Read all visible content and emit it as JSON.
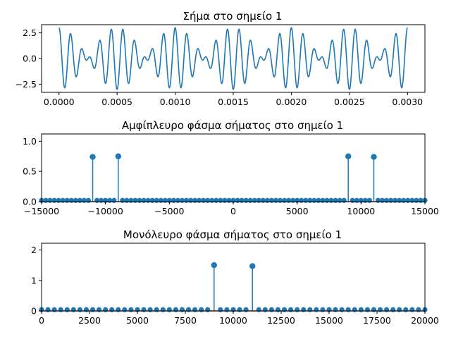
{
  "chart_data": [
    {
      "type": "line",
      "title": "Σήμα στο σημείο 1",
      "xlabel": "",
      "ylabel": "",
      "xlim": [
        -0.00015,
        0.00315
      ],
      "ylim": [
        -3.3,
        3.3
      ],
      "x_ticks": [
        0,
        0.0005,
        0.001,
        0.0015,
        0.002,
        0.0025,
        0.003
      ],
      "x_tick_labels": [
        "0.0000",
        "0.0005",
        "0.0010",
        "0.0015",
        "0.0020",
        "0.0025",
        "0.0030"
      ],
      "y_ticks": [
        -2.5,
        0,
        2.5
      ],
      "y_tick_labels": [
        "−2.5",
        "0.0",
        "2.5"
      ],
      "grid": false,
      "color": "#1f77b4",
      "series": [
        {
          "x": [
            0,
            0.003
          ],
          "components": [
            {
              "amplitude": 1.5,
              "frequency_hz": 9000
            },
            {
              "amplitude": 1.5,
              "frequency_hz": 11000
            }
          ]
        }
      ]
    },
    {
      "type": "stem",
      "title": "Αμφίπλευρο φάσμα σήματος στο σημείο 1",
      "xlabel": "",
      "ylabel": "",
      "xlim": [
        -15000,
        15000
      ],
      "ylim": [
        0,
        1.12
      ],
      "x_ticks": [
        -15000,
        -10000,
        -5000,
        0,
        5000,
        10000,
        15000
      ],
      "x_tick_labels": [
        "−15000",
        "−10000",
        "−5000",
        "0",
        "5000",
        "10000",
        "15000"
      ],
      "y_ticks": [
        0,
        0.5,
        1.0
      ],
      "y_tick_labels": [
        "0.0",
        "0.5",
        "1.0"
      ],
      "grid": false,
      "color": "#1f77b4",
      "baseline_color": "#d62728",
      "peaks": [
        {
          "x": -11000,
          "y": 0.74
        },
        {
          "x": -9000,
          "y": 0.75
        },
        {
          "x": 9000,
          "y": 0.75
        },
        {
          "x": 11000,
          "y": 0.74
        }
      ],
      "floor_level": 0.02,
      "bin_spacing": 333.33
    },
    {
      "type": "stem",
      "title": "Μονόλευρο φάσμα σήματος στο σημείο 1",
      "xlabel": "",
      "ylabel": "",
      "xlim": [
        0,
        20000
      ],
      "ylim": [
        0,
        2.22
      ],
      "x_ticks": [
        0,
        2500,
        5000,
        7500,
        10000,
        12500,
        15000,
        17500,
        20000
      ],
      "x_tick_labels": [
        "0",
        "2500",
        "5000",
        "7500",
        "10000",
        "12500",
        "15000",
        "17500",
        "20000"
      ],
      "y_ticks": [
        0,
        1,
        2
      ],
      "y_tick_labels": [
        "0",
        "1",
        "2"
      ],
      "grid": false,
      "color": "#1f77b4",
      "baseline_color": "#d62728",
      "peaks": [
        {
          "x": 9000,
          "y": 1.5
        },
        {
          "x": 11000,
          "y": 1.47
        }
      ],
      "floor_level": 0.04,
      "bin_spacing": 333.33
    }
  ]
}
